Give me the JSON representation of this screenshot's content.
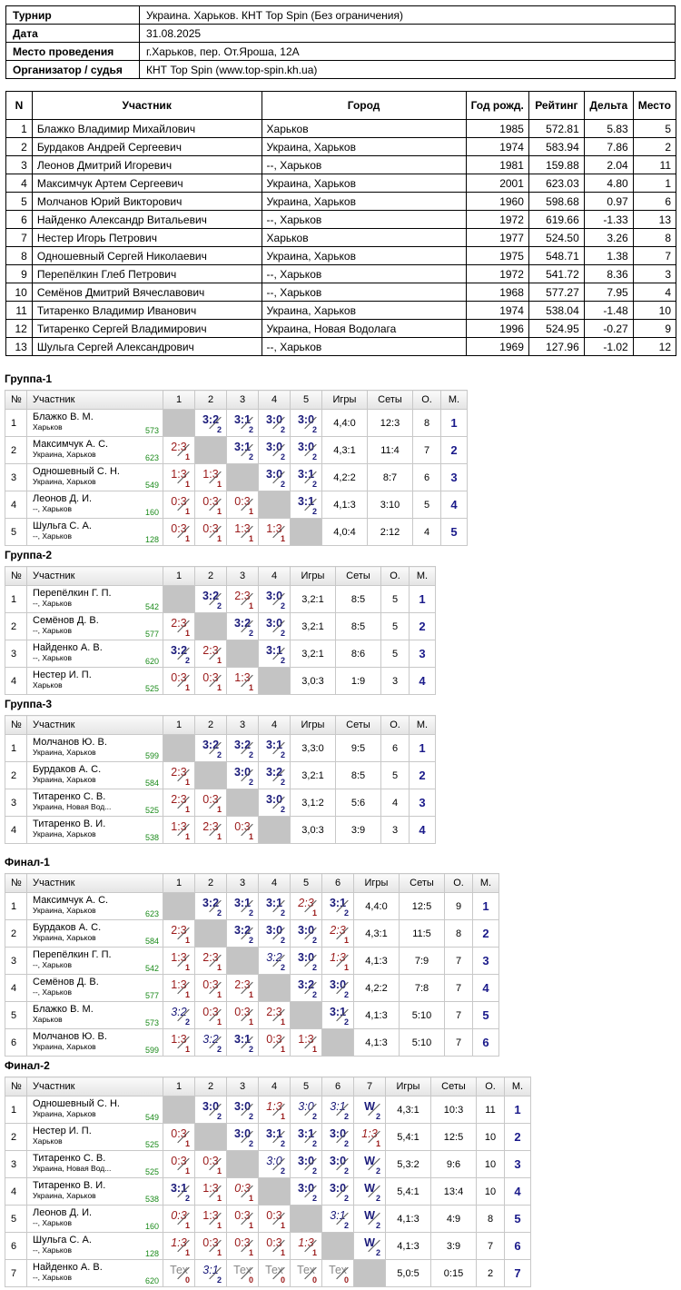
{
  "header": {
    "rows": [
      {
        "k": "Турнир",
        "v": "Украина. Харьков. КНТ Top Spin (Без ограничения)"
      },
      {
        "k": "Дата",
        "v": "31.08.2025"
      },
      {
        "k": "Место проведения",
        "v": "г.Харьков, пер. От.Яроша, 12А"
      },
      {
        "k": "Организатор / судья",
        "v": "КНТ Top Spin (www.top-spin.kh.ua)"
      }
    ]
  },
  "participants": {
    "columns": [
      "N",
      "Участник",
      "Город",
      "Год рожд.",
      "Рейтинг",
      "Дельта",
      "Место"
    ],
    "rows": [
      [
        "1",
        "Блажко Владимир Михайлович",
        "Харьков",
        "1985",
        "572.81",
        "5.83",
        "5"
      ],
      [
        "2",
        "Бурдаков Андрей Сергеевич",
        "Украина, Харьков",
        "1974",
        "583.94",
        "7.86",
        "2"
      ],
      [
        "3",
        "Леонов Дмитрий Игоревич",
        "--, Харьков",
        "1981",
        "159.88",
        "2.04",
        "11"
      ],
      [
        "4",
        "Максимчук Артем Сергеевич",
        "Украина, Харьков",
        "2001",
        "623.03",
        "4.80",
        "1"
      ],
      [
        "5",
        "Молчанов Юрий Викторович",
        "Украина, Харьков",
        "1960",
        "598.68",
        "0.97",
        "6"
      ],
      [
        "6",
        "Найденко Александр Витальевич",
        "--, Харьков",
        "1972",
        "619.66",
        "-1.33",
        "13"
      ],
      [
        "7",
        "Нестер Игорь Петрович",
        "Харьков",
        "1977",
        "524.50",
        "3.26",
        "8"
      ],
      [
        "8",
        "Одношевный Сергей Николаевич",
        "Украина, Харьков",
        "1975",
        "548.71",
        "1.38",
        "7"
      ],
      [
        "9",
        "Перепёлкин Глеб Петрович",
        "--, Харьков",
        "1972",
        "541.72",
        "8.36",
        "3"
      ],
      [
        "10",
        "Семёнов Дмитрий Вячеславович",
        "--, Харьков",
        "1968",
        "577.27",
        "7.95",
        "4"
      ],
      [
        "11",
        "Титаренко Владимир Иванович",
        "Украина, Харьков",
        "1974",
        "538.04",
        "-1.48",
        "10"
      ],
      [
        "12",
        "Титаренко Сергей Владимирович",
        "Украина, Новая Водолага",
        "1996",
        "524.95",
        "-0.27",
        "9"
      ],
      [
        "13",
        "Шульга Сергей Александрович",
        "--, Харьков",
        "1969",
        "127.96",
        "-1.02",
        "12"
      ]
    ]
  },
  "labels": {
    "no": "№",
    "player": "Участник",
    "games": "Игры",
    "sets": "Сеты",
    "points": "О.",
    "place": "М."
  },
  "groups": [
    {
      "title": "Группа-1",
      "n": 5,
      "players": [
        {
          "num": "1",
          "name": "Блажко В. М.",
          "city": "Харьков",
          "rating": "573",
          "results": [
            "X",
            "w:3:2:2",
            "w:3:1:2",
            "w:3:0:2",
            "w:3:0:2"
          ],
          "games": "4,4:0",
          "sets": "12:3",
          "points": "8",
          "place": "1"
        },
        {
          "num": "2",
          "name": "Максимчук А. С.",
          "city": "Украина, Харьков",
          "rating": "623",
          "results": [
            "l:2:3:1",
            "X",
            "w:3:1:2",
            "w:3:0:2",
            "w:3:0:2"
          ],
          "games": "4,3:1",
          "sets": "11:4",
          "points": "7",
          "place": "2"
        },
        {
          "num": "3",
          "name": "Одношевный С. Н.",
          "city": "Украина, Харьков",
          "rating": "549",
          "results": [
            "l:1:3:1",
            "l:1:3:1",
            "X",
            "w:3:0:2",
            "w:3:1:2"
          ],
          "games": "4,2:2",
          "sets": "8:7",
          "points": "6",
          "place": "3"
        },
        {
          "num": "4",
          "name": "Леонов Д. И.",
          "city": "--, Харьков",
          "rating": "160",
          "results": [
            "l:0:3:1",
            "l:0:3:1",
            "l:0:3:1",
            "X",
            "w:3:1:2"
          ],
          "games": "4,1:3",
          "sets": "3:10",
          "points": "5",
          "place": "4"
        },
        {
          "num": "5",
          "name": "Шульга С. А.",
          "city": "--, Харьков",
          "rating": "128",
          "results": [
            "l:0:3:1",
            "l:0:3:1",
            "l:1:3:1",
            "l:1:3:1",
            "X"
          ],
          "games": "4,0:4",
          "sets": "2:12",
          "points": "4",
          "place": "5"
        }
      ]
    },
    {
      "title": "Группа-2",
      "n": 4,
      "players": [
        {
          "num": "1",
          "name": "Перепёлкин Г. П.",
          "city": "--, Харьков",
          "rating": "542",
          "results": [
            "X",
            "w:3:2:2",
            "l:2:3:1",
            "w:3:0:2"
          ],
          "games": "3,2:1",
          "sets": "8:5",
          "points": "5",
          "place": "1"
        },
        {
          "num": "2",
          "name": "Семёнов Д. В.",
          "city": "--, Харьков",
          "rating": "577",
          "results": [
            "l:2:3:1",
            "X",
            "w:3:2:2",
            "w:3:0:2"
          ],
          "games": "3,2:1",
          "sets": "8:5",
          "points": "5",
          "place": "2"
        },
        {
          "num": "3",
          "name": "Найденко А. В.",
          "city": "--, Харьков",
          "rating": "620",
          "results": [
            "w:3:2:2",
            "l:2:3:1",
            "X",
            "w:3:1:2"
          ],
          "games": "3,2:1",
          "sets": "8:6",
          "points": "5",
          "place": "3"
        },
        {
          "num": "4",
          "name": "Нестер И. П.",
          "city": "Харьков",
          "rating": "525",
          "results": [
            "l:0:3:1",
            "l:0:3:1",
            "l:1:3:1",
            "X"
          ],
          "games": "3,0:3",
          "sets": "1:9",
          "points": "3",
          "place": "4"
        }
      ]
    },
    {
      "title": "Группа-3",
      "n": 4,
      "players": [
        {
          "num": "1",
          "name": "Молчанов Ю. В.",
          "city": "Украина, Харьков",
          "rating": "599",
          "results": [
            "X",
            "w:3:2:2",
            "w:3:2:2",
            "w:3:1:2"
          ],
          "games": "3,3:0",
          "sets": "9:5",
          "points": "6",
          "place": "1"
        },
        {
          "num": "2",
          "name": "Бурдаков А. С.",
          "city": "Украина, Харьков",
          "rating": "584",
          "results": [
            "l:2:3:1",
            "X",
            "w:3:0:2",
            "w:3:2:2"
          ],
          "games": "3,2:1",
          "sets": "8:5",
          "points": "5",
          "place": "2"
        },
        {
          "num": "3",
          "name": "Титаренко С. В.",
          "city": "Украина, Новая Вод...",
          "rating": "525",
          "results": [
            "l:2:3:1",
            "l:0:3:1",
            "X",
            "w:3:0:2"
          ],
          "games": "3,1:2",
          "sets": "5:6",
          "points": "4",
          "place": "3"
        },
        {
          "num": "4",
          "name": "Титаренко В. И.",
          "city": "Украина, Харьков",
          "rating": "538",
          "results": [
            "l:1:3:1",
            "l:2:3:1",
            "l:0:3:1",
            "X"
          ],
          "games": "3,0:3",
          "sets": "3:9",
          "points": "3",
          "place": "4"
        }
      ]
    },
    {
      "title": "Финал-1",
      "n": 6,
      "players": [
        {
          "num": "1",
          "name": "Максимчук А. С.",
          "city": "Украина, Харьков",
          "rating": "623",
          "results": [
            "X",
            "w:3:2:2",
            "w:3:1:2",
            "w:3:1:2",
            "tl:2:3:1",
            "w:3:1:2"
          ],
          "games": "4,4:0",
          "sets": "12:5",
          "points": "9",
          "place": "1"
        },
        {
          "num": "2",
          "name": "Бурдаков А. С.",
          "city": "Украина, Харьков",
          "rating": "584",
          "results": [
            "l:2:3:1",
            "X",
            "w:3:2:2",
            "w:3:0:2",
            "w:3:0:2",
            "tl:2:3:1"
          ],
          "games": "4,3:1",
          "sets": "11:5",
          "points": "8",
          "place": "2"
        },
        {
          "num": "3",
          "name": "Перепёлкин Г. П.",
          "city": "--, Харьков",
          "rating": "542",
          "results": [
            "l:1:3:1",
            "l:2:3:1",
            "X",
            "tw:3:2:2",
            "w:3:0:2",
            "tl:1:3:1"
          ],
          "games": "4,1:3",
          "sets": "7:9",
          "points": "7",
          "place": "3"
        },
        {
          "num": "4",
          "name": "Семёнов Д. В.",
          "city": "--, Харьков",
          "rating": "577",
          "results": [
            "l:1:3:1",
            "l:0:3:1",
            "l:2:3:1",
            "X",
            "w:3:2:2",
            "w:3:0:2"
          ],
          "games": "4,2:2",
          "sets": "7:8",
          "points": "7",
          "place": "4"
        },
        {
          "num": "5",
          "name": "Блажко В. М.",
          "city": "Харьков",
          "rating": "573",
          "results": [
            "tw:3:2:2",
            "l:0:3:1",
            "l:0:3:1",
            "l:2:3:1",
            "X",
            "w:3:1:2"
          ],
          "games": "4,1:3",
          "sets": "5:10",
          "points": "7",
          "place": "5"
        },
        {
          "num": "6",
          "name": "Молчанов Ю. В.",
          "city": "Украина, Харьков",
          "rating": "599",
          "results": [
            "l:1:3:1",
            "tw:3:2:2",
            "w:3:1:2",
            "l:0:3:1",
            "l:1:3:1",
            "X"
          ],
          "games": "4,1:3",
          "sets": "5:10",
          "points": "7",
          "place": "6"
        }
      ]
    },
    {
      "title": "Финал-2",
      "n": 7,
      "players": [
        {
          "num": "1",
          "name": "Одношевный С. Н.",
          "city": "Украина, Харьков",
          "rating": "549",
          "results": [
            "X",
            "w:3:0:2",
            "w:3:0:2",
            "tl:1:3:1",
            "tw:3:0:2",
            "tw:3:1:2",
            "w:W:2"
          ],
          "games": "4,3:1",
          "sets": "10:3",
          "points": "11",
          "place": "1"
        },
        {
          "num": "2",
          "name": "Нестер И. П.",
          "city": "Харьков",
          "rating": "525",
          "results": [
            "l:0:3:1",
            "X",
            "w:3:0:2",
            "w:3:1:2",
            "w:3:1:2",
            "w:3:0:2",
            "tl:1:3:1"
          ],
          "games": "5,4:1",
          "sets": "12:5",
          "points": "10",
          "place": "2"
        },
        {
          "num": "3",
          "name": "Титаренко С. В.",
          "city": "Украина, Новая Вод...",
          "rating": "525",
          "results": [
            "l:0:3:1",
            "l:0:3:1",
            "X",
            "tw:3:0:2",
            "w:3:0:2",
            "w:3:0:2",
            "w:W:2"
          ],
          "games": "5,3:2",
          "sets": "9:6",
          "points": "10",
          "place": "3"
        },
        {
          "num": "4",
          "name": "Титаренко В. И.",
          "city": "Украина, Харьков",
          "rating": "538",
          "results": [
            "w:3:1:2",
            "l:1:3:1",
            "tl:0:3:1",
            "X",
            "w:3:0:2",
            "w:3:0:2",
            "w:W:2"
          ],
          "games": "5,4:1",
          "sets": "13:4",
          "points": "10",
          "place": "4"
        },
        {
          "num": "5",
          "name": "Леонов Д. И.",
          "city": "--, Харьков",
          "rating": "160",
          "results": [
            "tl:0:3:1",
            "l:1:3:1",
            "l:0:3:1",
            "l:0:3:1",
            "X",
            "tw:3:1:2",
            "w:W:2"
          ],
          "games": "4,1:3",
          "sets": "4:9",
          "points": "8",
          "place": "5"
        },
        {
          "num": "6",
          "name": "Шульга С. А.",
          "city": "--, Харьков",
          "rating": "128",
          "results": [
            "tl:1:3:1",
            "l:0:3:1",
            "l:0:3:1",
            "l:0:3:1",
            "tl:1:3:1",
            "X",
            "w:W:2"
          ],
          "games": "4,1:3",
          "sets": "3:9",
          "points": "7",
          "place": "6"
        },
        {
          "num": "7",
          "name": "Найденко А. В.",
          "city": "--, Харьков",
          "rating": "620",
          "results": [
            "tech:Тех:0",
            "tw:3:1:2",
            "tech:Тех:0",
            "tech:Тех:0",
            "tech:Тех:0",
            "tech:Тех:0",
            "X"
          ],
          "games": "5,0:5",
          "sets": "0:15",
          "points": "2",
          "place": "7"
        }
      ]
    }
  ]
}
